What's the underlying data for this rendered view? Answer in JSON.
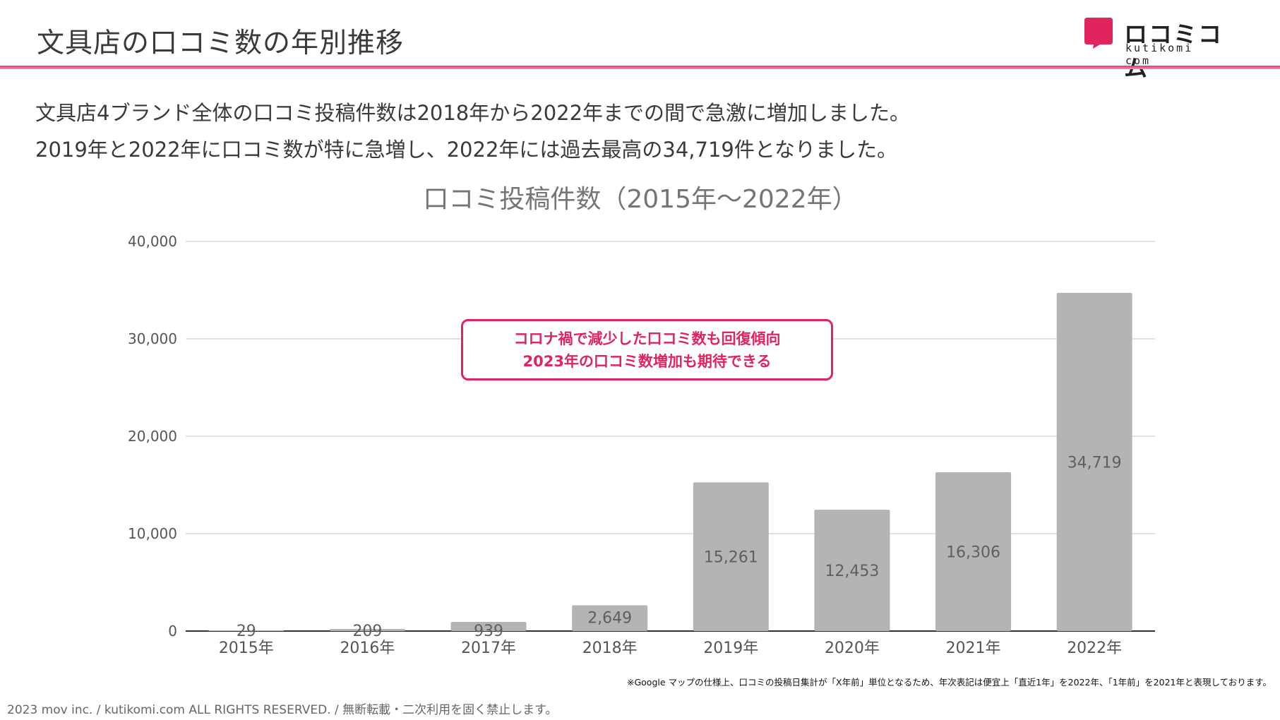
{
  "header": {
    "title": "文具店の口コミ数の年別推移",
    "accent_color": "#e8336f"
  },
  "logo": {
    "icon": "speech-bubble-icon",
    "text": "ロコミコム",
    "sub": "kutikomi com",
    "color": "#e0245e"
  },
  "lead": {
    "line1": "文具店4ブランド全体の口コミ投稿件数は2018年から2022年までの間で急激に増加しました。",
    "line2": "2019年と2022年に口コミ数が特に急増し、2022年には過去最高の34,719件となりました。"
  },
  "callout": {
    "line1": "コロナ禍で減少した口コミ数も回復傾向",
    "line2": "2023年の口コミ数増加も期待できる"
  },
  "chart_data": {
    "type": "bar",
    "title": "口コミ投稿件数（2015年〜2022年）",
    "categories": [
      "2015年",
      "2016年",
      "2017年",
      "2018年",
      "2019年",
      "2020年",
      "2021年",
      "2022年"
    ],
    "values": [
      29,
      209,
      939,
      2649,
      15261,
      12453,
      16306,
      34719
    ],
    "value_labels": [
      "29",
      "209",
      "939",
      "2,649",
      "15,261",
      "12,453",
      "16,306",
      "34,719"
    ],
    "ylim": [
      0,
      40000
    ],
    "yticks": [
      0,
      10000,
      20000,
      30000,
      40000
    ],
    "ytick_labels": [
      "0",
      "10,000",
      "20,000",
      "30,000",
      "40,000"
    ],
    "grid": true,
    "bar_color": "#b4b4b4"
  },
  "note": "※Google マップの仕様上、口コミの投稿日集計が「X年前」単位となるため、年次表記は便宜上「直近1年」を2022年、「1年前」を2021年と表現しております。",
  "footer": "2023 mov inc. / kutikomi.com ALL RIGHTS RESERVED. / 無断転載・二次利用を固く禁止します。"
}
